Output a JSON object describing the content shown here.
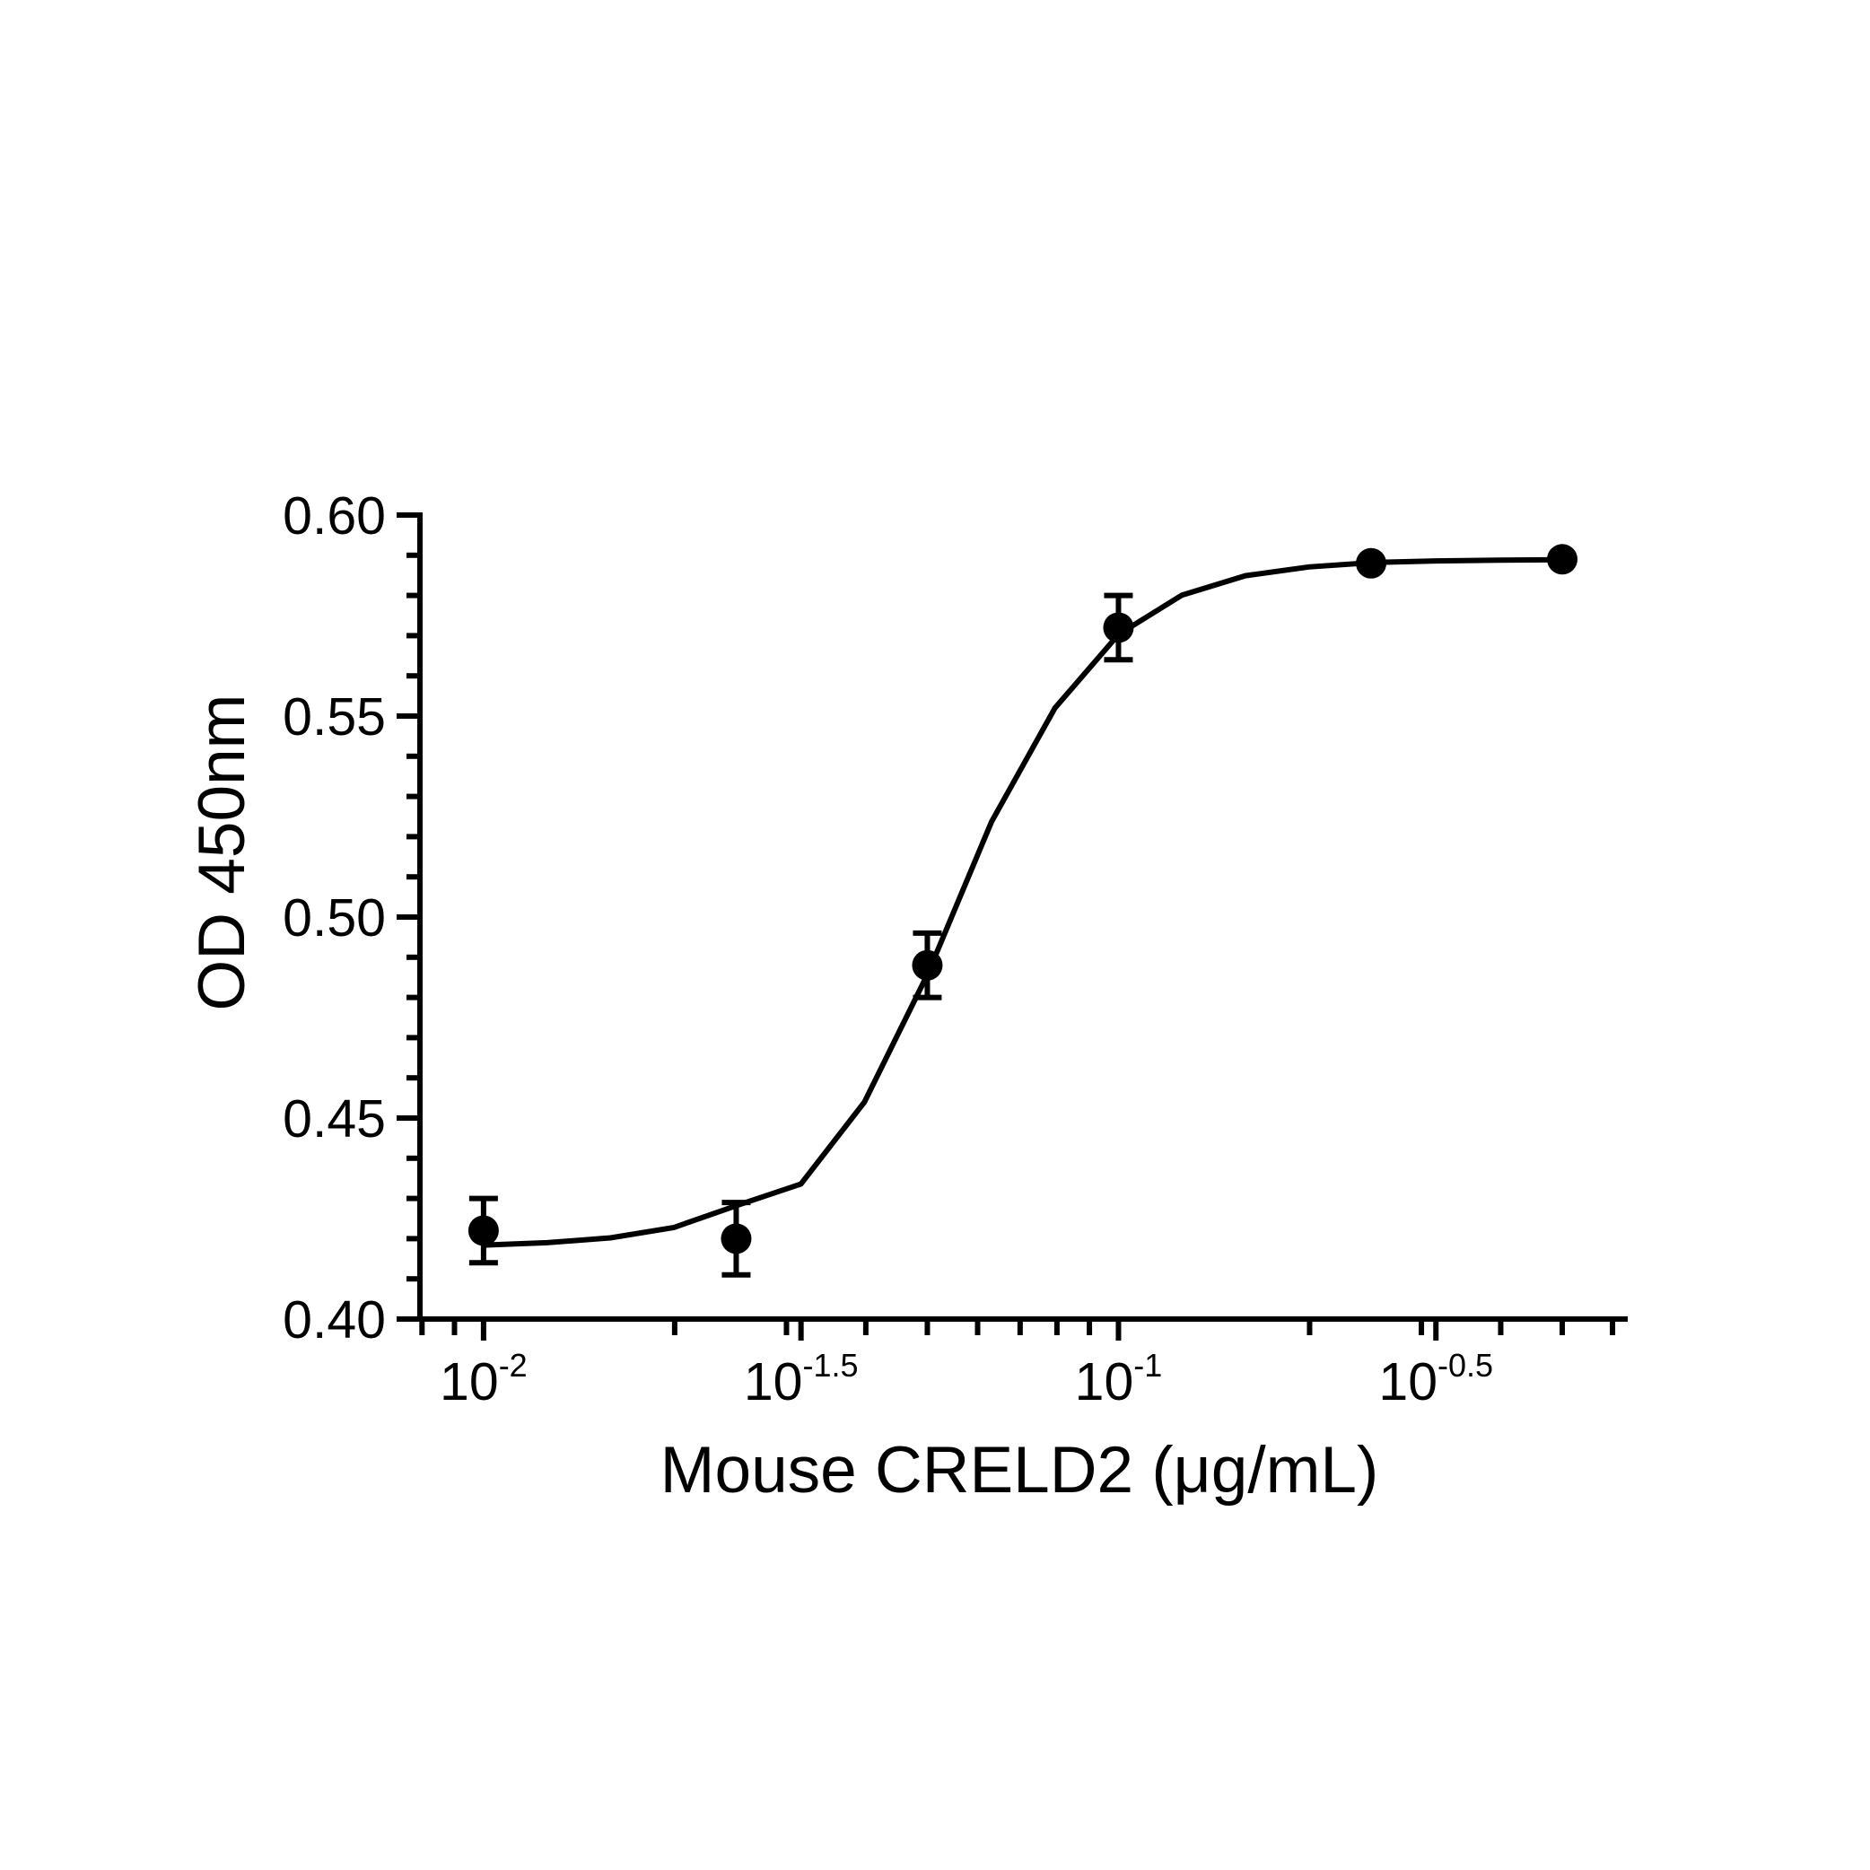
{
  "chart_data": {
    "type": "scatter",
    "x_label": "Mouse CRELD2 (μg/mL)",
    "y_label": "OD 450nm",
    "x": [
      0.01,
      0.025,
      0.05,
      0.1,
      0.25,
      0.5
    ],
    "values": [
      0.422,
      0.42,
      0.488,
      0.572,
      0.588,
      0.589
    ],
    "errors": [
      0.008,
      0.009,
      0.008,
      0.008,
      null,
      null
    ],
    "color": "#000000",
    "curve": {
      "x": [
        0.01,
        0.01259,
        0.01585,
        0.01995,
        0.02512,
        0.03162,
        0.03981,
        0.05012,
        0.0631,
        0.07943,
        0.1,
        0.1259,
        0.1585,
        0.1995,
        0.2512,
        0.3162,
        0.3981,
        0.5012
      ],
      "y": [
        0.4184,
        0.419,
        0.4202,
        0.4228,
        0.4283,
        0.4336,
        0.454,
        0.486,
        0.5237,
        0.552,
        0.5703,
        0.5801,
        0.5849,
        0.5871,
        0.5882,
        0.5886,
        0.5888,
        0.5889
      ]
    },
    "x_log": true,
    "xlim": [
      0.00794,
      0.634
    ],
    "xticks": [
      {
        "value": 0.01,
        "label": "10",
        "exponent": "-2"
      },
      {
        "value": 0.0316228,
        "label": "10",
        "exponent": "-1.5"
      },
      {
        "value": 0.1,
        "label": "10",
        "exponent": "-1"
      },
      {
        "value": 0.316228,
        "label": "10",
        "exponent": "-0.5"
      }
    ],
    "ylim": [
      0.4,
      0.6
    ],
    "yticks": [
      {
        "value": 0.4,
        "label": "0.40"
      },
      {
        "value": 0.45,
        "label": "0.45"
      },
      {
        "value": 0.5,
        "label": "0.50"
      },
      {
        "value": 0.55,
        "label": "0.55"
      },
      {
        "value": 0.6,
        "label": "0.60"
      }
    ],
    "grid": false
  }
}
